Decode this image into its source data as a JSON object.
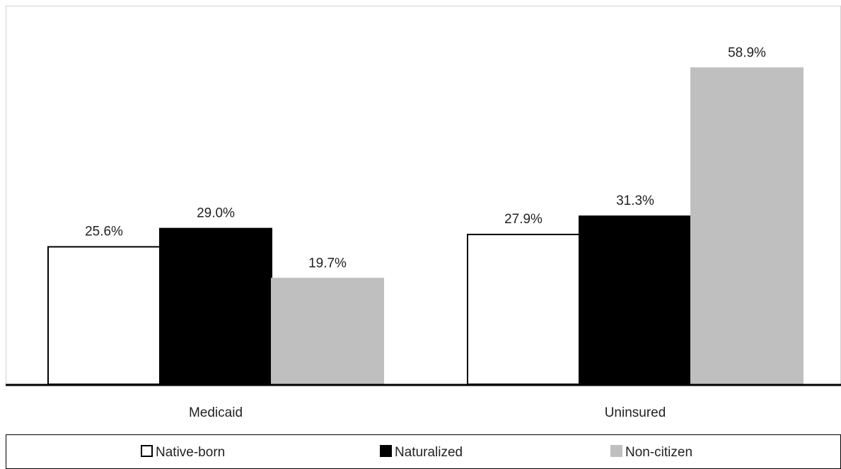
{
  "chart_data": {
    "type": "bar",
    "categories": [
      "Medicaid",
      "Uninsured"
    ],
    "series": [
      {
        "name": "Native-born",
        "values": [
          25.6,
          27.9
        ],
        "labels": [
          "25.6%",
          "27.9%"
        ],
        "color": "#ffffff",
        "stroke": "#000000"
      },
      {
        "name": "Naturalized",
        "values": [
          29.0,
          31.3
        ],
        "labels": [
          "29.0%",
          "31.3%"
        ],
        "color": "#000000",
        "stroke": "#000000"
      },
      {
        "name": "Non-citizen",
        "values": [
          19.7,
          58.9
        ],
        "labels": [
          "19.7%",
          "58.9%"
        ],
        "color": "#bfbfbf",
        "stroke": "#bfbfbf"
      }
    ],
    "ylim": [
      0,
      65
    ],
    "grid": false,
    "legend_position": "bottom"
  }
}
